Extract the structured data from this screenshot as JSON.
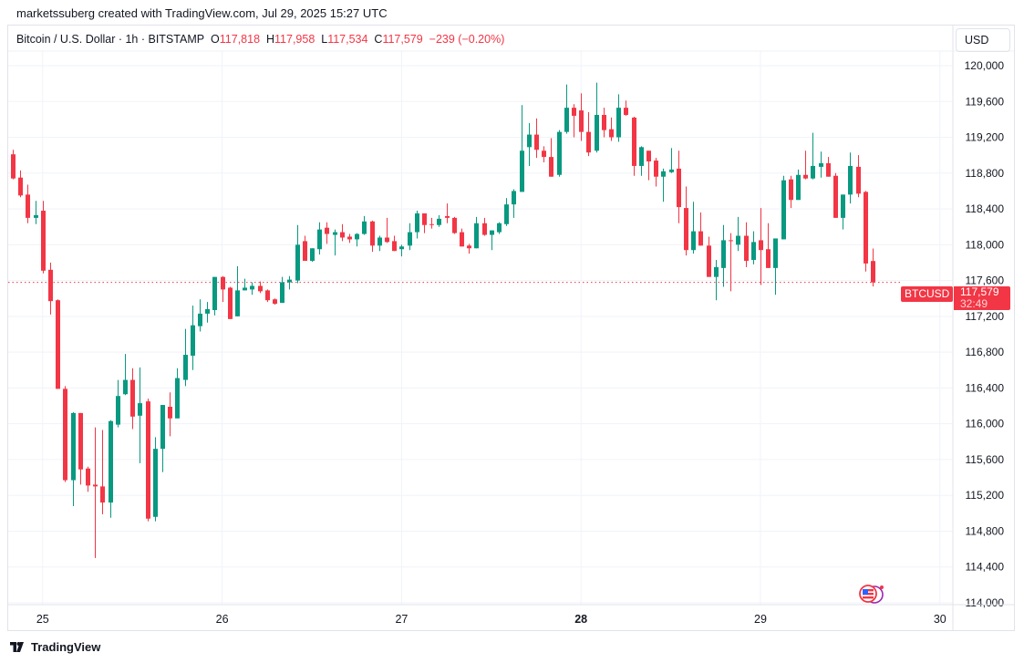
{
  "credit": "marketssuberg created with TradingView.com, Jul 29, 2025 15:27 UTC",
  "legend": {
    "symbol": "Bitcoin / U.S. Dollar · 1h · BITSTAMP",
    "o_label": "O",
    "o": "117,818",
    "h_label": "H",
    "h": "117,958",
    "l_label": "L",
    "l": "117,534",
    "c_label": "C",
    "c": "117,579",
    "change": "−239 (−0.20%)"
  },
  "currency_button": "USD",
  "price_label": {
    "symbol": "BTCUSD",
    "price": "117,579",
    "countdown": "32:49"
  },
  "logo_text": "TradingView",
  "colors": {
    "up": "#089981",
    "down": "#f23645",
    "grid": "#f0f3fa"
  },
  "icons": {
    "flag": "us-flag-events-icon",
    "logo": "tradingview-logo-icon"
  },
  "chart_data": {
    "type": "candlestick",
    "interval": "1h",
    "ylim": [
      114000,
      120000
    ],
    "y_ticks": [
      "120,000",
      "119,600",
      "119,200",
      "118,800",
      "118,400",
      "118,000",
      "117,600",
      "117,200",
      "116,800",
      "116,400",
      "116,000",
      "115,600",
      "115,200",
      "114,800",
      "114,400",
      "114,000"
    ],
    "x_ticks": [
      {
        "label": "25",
        "bold": false
      },
      {
        "label": "26",
        "bold": false
      },
      {
        "label": "27",
        "bold": false
      },
      {
        "label": "28",
        "bold": true
      },
      {
        "label": "29",
        "bold": false
      },
      {
        "label": "30",
        "bold": false
      }
    ],
    "grid": true,
    "last_price": 117579,
    "columns": [
      "time",
      "open",
      "high",
      "low",
      "close"
    ],
    "candles": [
      [
        "07-24 20:00",
        119010,
        119060,
        118730,
        118740
      ],
      [
        "07-24 21:00",
        118750,
        118830,
        118530,
        118550
      ],
      [
        "07-24 22:00",
        118560,
        118670,
        118240,
        118300
      ],
      [
        "07-24 23:00",
        118300,
        118490,
        118230,
        118330
      ],
      [
        "07-25 00:00",
        118380,
        118490,
        117680,
        117710
      ],
      [
        "07-25 01:00",
        117720,
        117800,
        117220,
        117370
      ],
      [
        "07-25 02:00",
        117380,
        117390,
        116390,
        116390
      ],
      [
        "07-25 03:00",
        116390,
        116420,
        115350,
        115370
      ],
      [
        "07-25 04:00",
        115370,
        116130,
        115080,
        116120
      ],
      [
        "07-25 05:00",
        116120,
        116120,
        115320,
        115490
      ],
      [
        "07-25 06:00",
        115500,
        115520,
        115240,
        115310
      ],
      [
        "07-25 07:00",
        115320,
        115960,
        114500,
        115300
      ],
      [
        "07-25 08:00",
        115300,
        115930,
        114990,
        115120
      ],
      [
        "07-25 09:00",
        115120,
        116040,
        114950,
        116030
      ],
      [
        "07-25 10:00",
        115990,
        116490,
        115960,
        116310
      ],
      [
        "07-25 11:00",
        116330,
        116780,
        116320,
        116490
      ],
      [
        "07-25 12:00",
        116490,
        116620,
        115940,
        116080
      ],
      [
        "07-25 13:00",
        116090,
        116630,
        115560,
        116230
      ],
      [
        "07-25 14:00",
        116250,
        116280,
        114910,
        114940
      ],
      [
        "07-25 15:00",
        114960,
        115850,
        114910,
        115720
      ],
      [
        "07-25 16:00",
        115720,
        116210,
        115460,
        116210
      ],
      [
        "07-25 17:00",
        116190,
        116350,
        115860,
        116060
      ],
      [
        "07-25 18:00",
        116060,
        116620,
        116060,
        116510
      ],
      [
        "07-25 19:00",
        116490,
        117060,
        116420,
        116770
      ],
      [
        "07-25 20:00",
        116760,
        117320,
        116600,
        117100
      ],
      [
        "07-25 21:00",
        117090,
        117390,
        117030,
        117230
      ],
      [
        "07-25 22:00",
        117230,
        117360,
        117130,
        117280
      ],
      [
        "07-25 23:00",
        117270,
        117640,
        117210,
        117640
      ],
      [
        "07-26 00:00",
        117640,
        117650,
        117360,
        117500
      ],
      [
        "07-26 01:00",
        117520,
        117530,
        117170,
        117170
      ],
      [
        "07-26 02:00",
        117200,
        117760,
        117200,
        117490
      ],
      [
        "07-26 03:00",
        117490,
        117620,
        117490,
        117520
      ],
      [
        "07-26 04:00",
        117500,
        117580,
        117440,
        117540
      ],
      [
        "07-26 05:00",
        117540,
        117590,
        117460,
        117480
      ],
      [
        "07-26 06:00",
        117490,
        117500,
        117360,
        117380
      ],
      [
        "07-26 07:00",
        117390,
        117400,
        117330,
        117340
      ],
      [
        "07-26 08:00",
        117350,
        117640,
        117350,
        117580
      ],
      [
        "07-26 09:00",
        117580,
        117650,
        117500,
        117610
      ],
      [
        "07-26 10:00",
        117600,
        118220,
        117570,
        118000
      ],
      [
        "07-26 11:00",
        118040,
        118100,
        117820,
        117820
      ],
      [
        "07-26 12:00",
        117820,
        117960,
        117810,
        117960
      ],
      [
        "07-26 13:00",
        117950,
        118250,
        117890,
        118170
      ],
      [
        "07-26 14:00",
        118190,
        118250,
        118010,
        118120
      ],
      [
        "07-26 15:00",
        118110,
        118170,
        117880,
        118140
      ],
      [
        "07-26 16:00",
        118140,
        118230,
        118040,
        118080
      ],
      [
        "07-26 17:00",
        118090,
        118120,
        118020,
        118060
      ],
      [
        "07-26 18:00",
        118060,
        118130,
        117980,
        118120
      ],
      [
        "07-26 19:00",
        118120,
        118320,
        118110,
        118260
      ],
      [
        "07-26 20:00",
        118260,
        118270,
        117920,
        117990
      ],
      [
        "07-26 21:00",
        117990,
        118100,
        117930,
        118080
      ],
      [
        "07-26 22:00",
        118080,
        118300,
        118020,
        118030
      ],
      [
        "07-26 23:00",
        118040,
        118100,
        117930,
        117930
      ],
      [
        "07-27 00:00",
        117950,
        118000,
        117870,
        117980
      ],
      [
        "07-27 01:00",
        117990,
        118240,
        117940,
        118140
      ],
      [
        "07-27 02:00",
        118140,
        118380,
        118070,
        118350
      ],
      [
        "07-27 03:00",
        118350,
        118350,
        118130,
        118220
      ],
      [
        "07-27 04:00",
        118230,
        118300,
        118180,
        118220
      ],
      [
        "07-27 05:00",
        118220,
        118330,
        118200,
        118290
      ],
      [
        "07-27 06:00",
        118320,
        118460,
        118240,
        118300
      ],
      [
        "07-27 07:00",
        118300,
        118310,
        118120,
        118130
      ],
      [
        "07-27 08:00",
        118140,
        118180,
        117980,
        117980
      ],
      [
        "07-27 09:00",
        117990,
        118010,
        117900,
        117960
      ],
      [
        "07-27 10:00",
        117960,
        118310,
        117960,
        118240
      ],
      [
        "07-27 11:00",
        118240,
        118300,
        118100,
        118110
      ],
      [
        "07-27 12:00",
        118110,
        118160,
        117940,
        118160
      ],
      [
        "07-27 13:00",
        118140,
        118250,
        118120,
        118240
      ],
      [
        "07-27 14:00",
        118230,
        118520,
        118210,
        118450
      ],
      [
        "07-27 15:00",
        118450,
        118620,
        118300,
        118600
      ],
      [
        "07-27 16:00",
        118590,
        119560,
        118590,
        119050
      ],
      [
        "07-27 17:00",
        119090,
        119360,
        118880,
        119230
      ],
      [
        "07-27 18:00",
        119230,
        119410,
        118970,
        119060
      ],
      [
        "07-27 19:00",
        119050,
        119100,
        118920,
        118980
      ],
      [
        "07-27 20:00",
        118980,
        119190,
        118760,
        118760
      ],
      [
        "07-27 21:00",
        118780,
        119280,
        118760,
        119260
      ],
      [
        "07-27 22:00",
        119260,
        119790,
        119240,
        119530
      ],
      [
        "07-27 23:00",
        119530,
        119570,
        119200,
        119440
      ],
      [
        "07-28 00:00",
        119500,
        119690,
        119160,
        119260
      ],
      [
        "07-28 01:00",
        119260,
        119480,
        118990,
        119030
      ],
      [
        "07-28 02:00",
        119050,
        119810,
        119030,
        119450
      ],
      [
        "07-28 03:00",
        119450,
        119530,
        119200,
        119280
      ],
      [
        "07-28 04:00",
        119290,
        119420,
        119160,
        119200
      ],
      [
        "07-28 05:00",
        119200,
        119680,
        119150,
        119530
      ],
      [
        "07-28 06:00",
        119530,
        119610,
        119440,
        119450
      ],
      [
        "07-28 07:00",
        119420,
        119430,
        118770,
        118880
      ],
      [
        "07-28 08:00",
        118880,
        119100,
        118770,
        119090
      ],
      [
        "07-28 09:00",
        119050,
        119050,
        118720,
        118930
      ],
      [
        "07-28 10:00",
        118940,
        118970,
        118650,
        118760
      ],
      [
        "07-28 11:00",
        118760,
        118850,
        118480,
        118820
      ],
      [
        "07-28 12:00",
        118810,
        119080,
        118800,
        118840
      ],
      [
        "07-28 13:00",
        118850,
        119050,
        118240,
        118420
      ],
      [
        "07-28 14:00",
        118410,
        118650,
        117880,
        117940
      ],
      [
        "07-28 15:00",
        117940,
        118480,
        117900,
        118150
      ],
      [
        "07-28 16:00",
        118150,
        118360,
        117990,
        117990
      ],
      [
        "07-28 17:00",
        117990,
        118090,
        117640,
        117640
      ],
      [
        "07-28 18:00",
        117640,
        117830,
        117380,
        117750
      ],
      [
        "07-28 19:00",
        117740,
        118220,
        117530,
        118050
      ],
      [
        "07-28 20:00",
        118050,
        118130,
        117480,
        118040
      ],
      [
        "07-28 21:00",
        118000,
        118310,
        117930,
        118100
      ],
      [
        "07-28 22:00",
        118100,
        118250,
        117750,
        117820
      ],
      [
        "07-28 23:00",
        117830,
        118150,
        117780,
        118030
      ],
      [
        "07-29 00:00",
        118050,
        118410,
        117550,
        117940
      ],
      [
        "07-29 01:00",
        117950,
        118240,
        117740,
        117740
      ],
      [
        "07-29 02:00",
        117740,
        118070,
        117440,
        118070
      ],
      [
        "07-29 03:00",
        118060,
        118770,
        118060,
        118720
      ],
      [
        "07-29 04:00",
        118730,
        118770,
        118410,
        118500
      ],
      [
        "07-29 05:00",
        118500,
        118840,
        118500,
        118780
      ],
      [
        "07-29 06:00",
        118780,
        119050,
        118730,
        118740
      ],
      [
        "07-29 07:00",
        118740,
        119250,
        118730,
        118880
      ],
      [
        "07-29 08:00",
        118870,
        119040,
        118750,
        118910
      ],
      [
        "07-29 09:00",
        118910,
        118980,
        118760,
        118760
      ],
      [
        "07-29 10:00",
        118770,
        118800,
        118300,
        118300
      ],
      [
        "07-29 11:00",
        118300,
        118560,
        118170,
        118560
      ],
      [
        "07-29 12:00",
        118560,
        119030,
        118460,
        118880
      ],
      [
        "07-29 13:00",
        118870,
        119000,
        118530,
        118570
      ],
      [
        "07-29 14:00",
        118590,
        118600,
        117700,
        117790
      ],
      [
        "07-29 15:00",
        117818,
        117958,
        117534,
        117579
      ]
    ]
  }
}
